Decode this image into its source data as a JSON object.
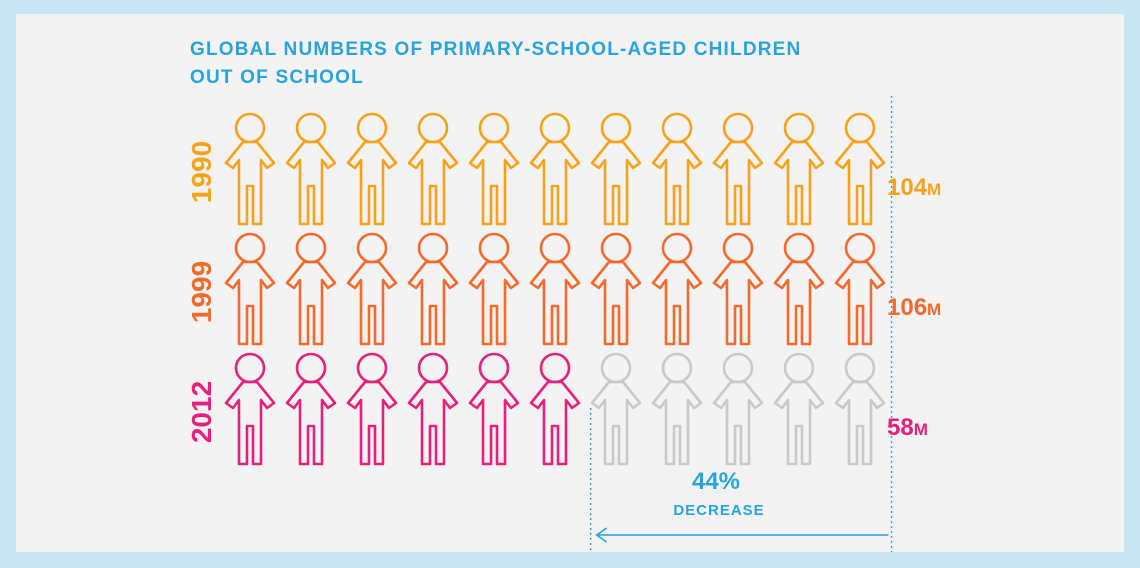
{
  "title": {
    "line1": "GLOBAL NUMBERS OF PRIMARY-SCHOOL-AGED CHILDREN",
    "line2": "OUT OF SCHOOL"
  },
  "chart_data": {
    "type": "bar",
    "mark": "pictogram",
    "categories": [
      "1990",
      "1999",
      "2012"
    ],
    "values": [
      104,
      106,
      58
    ],
    "value_labels": [
      {
        "number": "104",
        "unit": "M"
      },
      {
        "number": "106",
        "unit": "M"
      },
      {
        "number": "58",
        "unit": "M"
      }
    ],
    "icons_per_row": 11,
    "scale_max": 106,
    "colors": [
      "#f7a21b",
      "#f26a2e",
      "#e5207d"
    ],
    "empty_color": "#c9c9c9",
    "annotation": {
      "percent": "44%",
      "label": "DECREASE"
    },
    "annotation_color": "#29a3dc"
  }
}
